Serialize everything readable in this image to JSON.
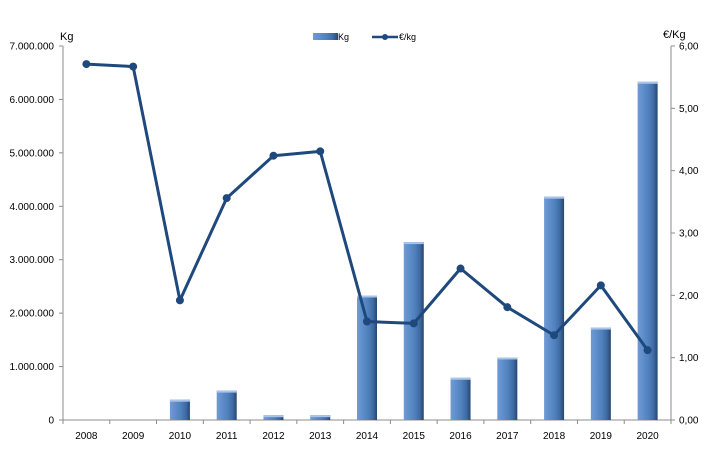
{
  "chart_data": {
    "type": "bar",
    "categories": [
      "2008",
      "2009",
      "2010",
      "2011",
      "2012",
      "2013",
      "2014",
      "2015",
      "2016",
      "2017",
      "2018",
      "2019",
      "2020"
    ],
    "series": [
      {
        "name": "Kg",
        "type": "bar",
        "axis": "left",
        "color": "#4f81bd",
        "values": [
          0,
          0,
          380000,
          550000,
          90000,
          90000,
          2330000,
          3330000,
          790000,
          1170000,
          4180000,
          1730000,
          6330000
        ]
      },
      {
        "name": "€/kg",
        "type": "line",
        "axis": "right",
        "color": "#1f497d",
        "values": [
          5.71,
          5.67,
          1.92,
          3.56,
          4.24,
          4.31,
          1.58,
          1.55,
          2.43,
          1.81,
          1.36,
          2.16,
          1.12
        ]
      }
    ],
    "yleft": {
      "label": "Kg",
      "lim": [
        0,
        7000000
      ],
      "ticks": [
        "0",
        "1.000.000",
        "2.000.000",
        "3.000.000",
        "4.000.000",
        "5.000.000",
        "6.000.000",
        "7.000.000"
      ]
    },
    "yright": {
      "label": "€/Kg",
      "lim": [
        0,
        6
      ],
      "ticks": [
        "0,00",
        "1,00",
        "2,00",
        "3,00",
        "4,00",
        "5,00",
        "6,00"
      ]
    },
    "grid": false,
    "legend_position": "top-center"
  }
}
